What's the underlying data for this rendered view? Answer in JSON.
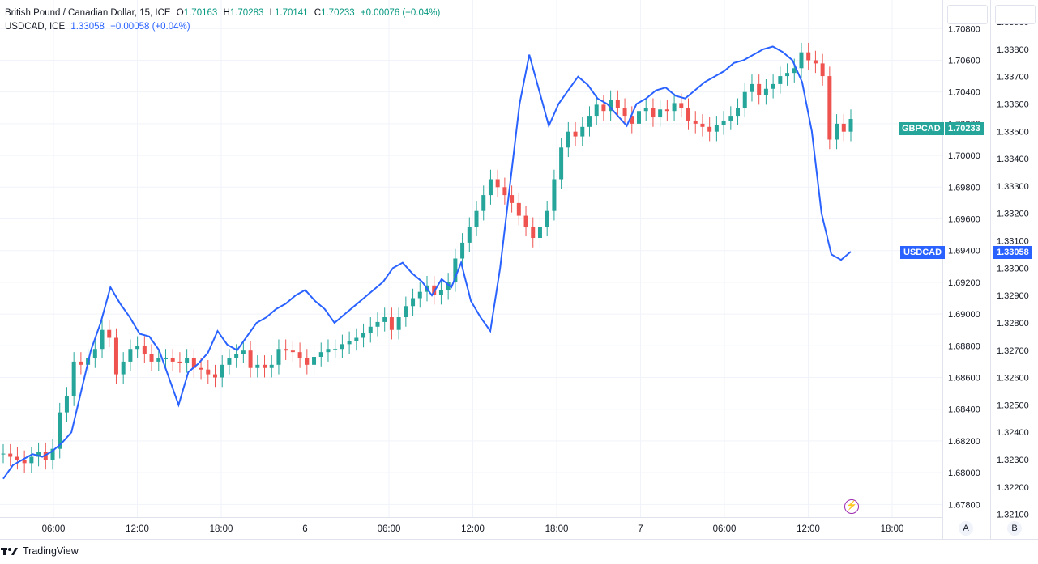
{
  "legend": {
    "main_name": "British Pound / Canadian Dollar, 15, ICE",
    "o_label": "O",
    "o_value": "1.70163",
    "h_label": "H",
    "h_value": "1.70283",
    "l_label": "L",
    "l_value": "1.70141",
    "c_label": "C",
    "c_value": "1.70233",
    "change": "+0.00076 (+0.04%)",
    "overlay_name": "USDCAD, ICE",
    "overlay_value": "1.33058",
    "overlay_change": "+0.00058 (+0.04%)"
  },
  "badges": {
    "gbpcad_label": "GBPCAD",
    "gbpcad_value": "1.70233",
    "usdcad_label": "USDCAD",
    "usdcad_value": "1.33058"
  },
  "scale_buttons": {
    "a": "A",
    "b": "B"
  },
  "brand": "TradingView",
  "colors": {
    "up": "#26a69a",
    "down": "#ef5350",
    "overlay": "#2962ff",
    "grid": "#f0f3fa"
  },
  "chart_data": {
    "type": "line",
    "x_ticks": [
      "06:00",
      "12:00",
      "18:00",
      "6",
      "06:00",
      "12:00",
      "18:00",
      "7",
      "06:00",
      "12:00",
      "18:00"
    ],
    "left_axis_ticks": [
      "1.70800",
      "1.70600",
      "1.70400",
      "1.70200",
      "1.70000",
      "1.69800",
      "1.69600",
      "1.69400",
      "1.69200",
      "1.69000",
      "1.68800",
      "1.68600",
      "1.68400",
      "1.68200",
      "1.68000",
      "1.67800"
    ],
    "right_axis_ticks": [
      "1.33900",
      "1.33800",
      "1.33700",
      "1.33600",
      "1.33500",
      "1.33400",
      "1.33300",
      "1.33200",
      "1.33100",
      "1.33000",
      "1.32900",
      "1.32800",
      "1.32700",
      "1.32600",
      "1.32500",
      "1.32400",
      "1.32300",
      "1.32200",
      "1.32100"
    ],
    "ylim_gbpcad": [
      1.6772,
      1.7098
    ],
    "ylim_usdcad": [
      1.3209,
      1.3398
    ],
    "series": [
      {
        "name": "GBPCAD",
        "kind": "candlestick-close",
        "values": [
          1.6812,
          1.681,
          1.6808,
          1.6806,
          1.681,
          1.6813,
          1.6808,
          1.6815,
          1.6838,
          1.6848,
          1.687,
          1.6868,
          1.6872,
          1.6878,
          1.689,
          1.6885,
          1.6862,
          1.687,
          1.6878,
          1.688,
          1.6875,
          1.687,
          1.6872,
          1.6872,
          1.687,
          1.6869,
          1.6872,
          1.6866,
          1.6865,
          1.6862,
          1.686,
          1.6868,
          1.6872,
          1.6875,
          1.6877,
          1.6866,
          1.6868,
          1.6866,
          1.6868,
          1.6878,
          1.6877,
          1.6876,
          1.6872,
          1.6868,
          1.6873,
          1.6876,
          1.6878,
          1.6878,
          1.6881,
          1.6883,
          1.6885,
          1.6888,
          1.6892,
          1.6895,
          1.6898,
          1.689,
          1.6898,
          1.6905,
          1.691,
          1.6914,
          1.6918,
          1.6912,
          1.6915,
          1.692,
          1.6935,
          1.6945,
          1.6955,
          1.6965,
          1.6975,
          1.6985,
          1.698,
          1.6975,
          1.697,
          1.6962,
          1.6955,
          1.6948,
          1.6955,
          1.6965,
          1.6985,
          1.7005,
          1.7015,
          1.7012,
          1.7018,
          1.7025,
          1.7032,
          1.7028,
          1.7035,
          1.703,
          1.7025,
          1.702,
          1.7028,
          1.703,
          1.7024,
          1.7029,
          1.7028,
          1.7033,
          1.703,
          1.7022,
          1.702,
          1.7018,
          1.7015,
          1.7019,
          1.7022,
          1.7025,
          1.703,
          1.704,
          1.7045,
          1.7038,
          1.7042,
          1.7045,
          1.705,
          1.7052,
          1.7055,
          1.7065,
          1.706,
          1.7058,
          1.705,
          1.701,
          1.702,
          1.7015,
          1.7023
        ]
      },
      {
        "name": "USDCAD",
        "kind": "line",
        "values": [
          1.3223,
          1.3228,
          1.323,
          1.3232,
          1.3231,
          1.3233,
          1.3236,
          1.324,
          1.3255,
          1.327,
          1.328,
          1.3293,
          1.3287,
          1.3282,
          1.3276,
          1.3275,
          1.327,
          1.326,
          1.325,
          1.3262,
          1.3265,
          1.3269,
          1.3277,
          1.3272,
          1.327,
          1.3275,
          1.328,
          1.3282,
          1.3285,
          1.3287,
          1.329,
          1.3292,
          1.3288,
          1.3285,
          1.328,
          1.3283,
          1.3286,
          1.3289,
          1.3292,
          1.3295,
          1.33,
          1.3302,
          1.3298,
          1.3295,
          1.329,
          1.3296,
          1.3293,
          1.3302,
          1.3288,
          1.3282,
          1.3277,
          1.33,
          1.333,
          1.336,
          1.3378,
          1.3365,
          1.3352,
          1.336,
          1.3365,
          1.337,
          1.3367,
          1.3362,
          1.336,
          1.3356,
          1.3352,
          1.336,
          1.3362,
          1.3365,
          1.3366,
          1.3363,
          1.3362,
          1.3365,
          1.3368,
          1.337,
          1.3372,
          1.3375,
          1.3376,
          1.3378,
          1.338,
          1.3381,
          1.3379,
          1.3376,
          1.3368,
          1.335,
          1.332,
          1.3305,
          1.3303,
          1.3306
        ]
      }
    ]
  }
}
